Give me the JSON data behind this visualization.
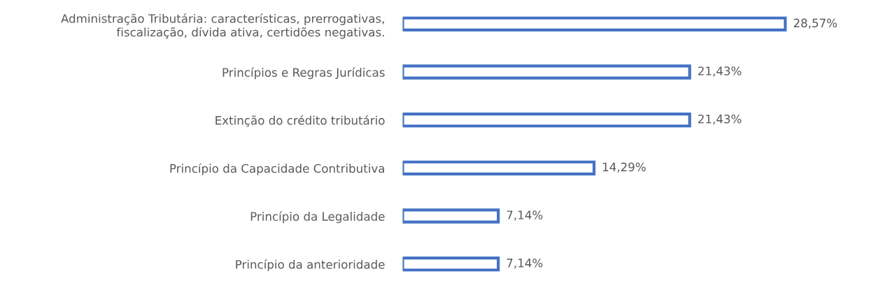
{
  "chart_data": {
    "type": "bar",
    "orientation": "horizontal",
    "categories": [
      "Administração Tributária: características, prerrogativas,\nfiscalização, dívida ativa, certidões negativas.",
      "Princípios e Regras Jurídicas",
      "Extinção do crédito tributário",
      "Princípio da Capacidade Contributiva",
      "Princípio da Legalidade",
      "Princípio da anterioridade"
    ],
    "values": [
      28.57,
      21.43,
      21.43,
      14.29,
      7.14,
      7.14
    ],
    "value_labels": [
      "28,57%",
      "21,43%",
      "21,43%",
      "14,29%",
      "7,14%",
      "7,14%"
    ],
    "color": "#4472c4",
    "grid": false,
    "legend": false
  }
}
